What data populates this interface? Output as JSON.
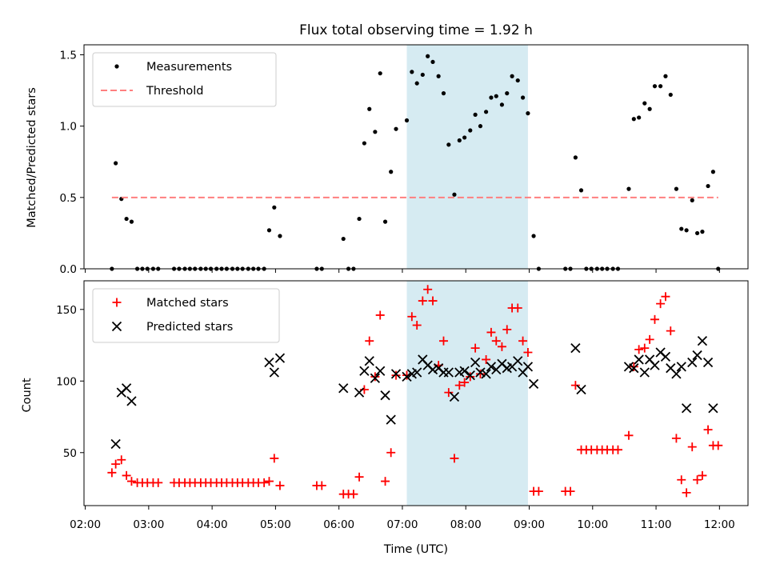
{
  "chart_data": [
    {
      "type": "scatter",
      "title": "Flux total observing time = 1.92 h",
      "xlabel": "",
      "ylabel": "Matched/Predicted stars",
      "x_unit": "hours UTC",
      "xlim": [
        1.98,
        12.45
      ],
      "ylim": [
        0,
        1.57
      ],
      "yticks": [
        0.0,
        0.5,
        1.0,
        1.5
      ],
      "ytick_labels": [
        "0.0",
        "0.5",
        "1.0",
        "1.5"
      ],
      "grid": false,
      "legend_position": "upper-left",
      "shaded_span": [
        7.07,
        8.98
      ],
      "shaded_color": "#add8e6",
      "series": [
        {
          "name": "Measurements",
          "marker": "dot",
          "color": "#000000",
          "points": [
            [
              2.42,
              0.0
            ],
            [
              2.48,
              0.74
            ],
            [
              2.57,
              0.49
            ],
            [
              2.65,
              0.35
            ],
            [
              2.73,
              0.33
            ],
            [
              2.82,
              0.0
            ],
            [
              2.9,
              0.0
            ],
            [
              2.98,
              0.0
            ],
            [
              3.07,
              0.0
            ],
            [
              3.15,
              0.0
            ],
            [
              3.4,
              0.0
            ],
            [
              3.48,
              0.0
            ],
            [
              3.57,
              0.0
            ],
            [
              3.65,
              0.0
            ],
            [
              3.73,
              0.0
            ],
            [
              3.82,
              0.0
            ],
            [
              3.9,
              0.0
            ],
            [
              3.98,
              0.0
            ],
            [
              4.07,
              0.0
            ],
            [
              4.15,
              0.0
            ],
            [
              4.23,
              0.0
            ],
            [
              4.32,
              0.0
            ],
            [
              4.4,
              0.0
            ],
            [
              4.48,
              0.0
            ],
            [
              4.57,
              0.0
            ],
            [
              4.65,
              0.0
            ],
            [
              4.73,
              0.0
            ],
            [
              4.82,
              0.0
            ],
            [
              4.9,
              0.27
            ],
            [
              4.98,
              0.43
            ],
            [
              5.07,
              0.23
            ],
            [
              5.65,
              0.0
            ],
            [
              5.73,
              0.0
            ],
            [
              6.07,
              0.21
            ],
            [
              6.15,
              0.0
            ],
            [
              6.23,
              0.0
            ],
            [
              6.32,
              0.35
            ],
            [
              6.4,
              0.88
            ],
            [
              6.48,
              1.12
            ],
            [
              6.57,
              0.96
            ],
            [
              6.65,
              1.37
            ],
            [
              6.73,
              0.33
            ],
            [
              6.82,
              0.68
            ],
            [
              6.9,
              0.98
            ],
            [
              7.07,
              1.04
            ],
            [
              7.15,
              1.38
            ],
            [
              7.23,
              1.3
            ],
            [
              7.32,
              1.36
            ],
            [
              7.4,
              1.49
            ],
            [
              7.48,
              1.45
            ],
            [
              7.57,
              1.35
            ],
            [
              7.65,
              1.23
            ],
            [
              7.73,
              0.87
            ],
            [
              7.82,
              0.52
            ],
            [
              7.9,
              0.9
            ],
            [
              7.98,
              0.92
            ],
            [
              8.07,
              0.97
            ],
            [
              8.15,
              1.08
            ],
            [
              8.23,
              1.0
            ],
            [
              8.32,
              1.1
            ],
            [
              8.4,
              1.2
            ],
            [
              8.48,
              1.21
            ],
            [
              8.57,
              1.15
            ],
            [
              8.65,
              1.23
            ],
            [
              8.73,
              1.35
            ],
            [
              8.82,
              1.32
            ],
            [
              8.9,
              1.2
            ],
            [
              8.98,
              1.09
            ],
            [
              9.07,
              0.23
            ],
            [
              9.15,
              0.0
            ],
            [
              9.57,
              0.0
            ],
            [
              9.65,
              0.0
            ],
            [
              9.73,
              0.78
            ],
            [
              9.82,
              0.55
            ],
            [
              9.9,
              0.0
            ],
            [
              9.98,
              0.0
            ],
            [
              10.07,
              0.0
            ],
            [
              10.15,
              0.0
            ],
            [
              10.23,
              0.0
            ],
            [
              10.32,
              0.0
            ],
            [
              10.4,
              0.0
            ],
            [
              10.57,
              0.56
            ],
            [
              10.65,
              1.05
            ],
            [
              10.73,
              1.06
            ],
            [
              10.82,
              1.16
            ],
            [
              10.9,
              1.12
            ],
            [
              10.98,
              1.28
            ],
            [
              11.07,
              1.28
            ],
            [
              11.15,
              1.35
            ],
            [
              11.23,
              1.22
            ],
            [
              11.32,
              0.56
            ],
            [
              11.4,
              0.28
            ],
            [
              11.48,
              0.27
            ],
            [
              11.57,
              0.48
            ],
            [
              11.65,
              0.25
            ],
            [
              11.73,
              0.26
            ],
            [
              11.82,
              0.58
            ],
            [
              11.9,
              0.68
            ],
            [
              11.98,
              0.0
            ]
          ]
        },
        {
          "name": "Threshold",
          "type": "line",
          "style": "dashed",
          "color": "#ff7f7f",
          "x": [
            2.42,
            11.98
          ],
          "y": [
            0.5,
            0.5
          ]
        }
      ]
    },
    {
      "type": "scatter",
      "title": "",
      "xlabel": "Time (UTC)",
      "ylabel": "Count",
      "x_unit": "hours UTC",
      "xlim": [
        1.98,
        12.45
      ],
      "ylim": [
        13,
        170
      ],
      "yticks": [
        50,
        100,
        150
      ],
      "ytick_labels": [
        "50",
        "100",
        "150"
      ],
      "xticks": [
        2,
        3,
        4,
        5,
        6,
        7,
        8,
        9,
        10,
        11,
        12
      ],
      "xtick_labels": [
        "02:00",
        "03:00",
        "04:00",
        "05:00",
        "06:00",
        "07:00",
        "08:00",
        "09:00",
        "10:00",
        "11:00",
        "12:00"
      ],
      "grid": false,
      "legend_position": "upper-left",
      "shaded_span": [
        7.07,
        8.98
      ],
      "shaded_color": "#add8e6",
      "series": [
        {
          "name": "Matched stars",
          "marker": "plus",
          "color": "#ff0000",
          "points": [
            [
              2.42,
              36
            ],
            [
              2.48,
              42
            ],
            [
              2.57,
              45
            ],
            [
              2.65,
              34
            ],
            [
              2.73,
              30
            ],
            [
              2.82,
              29
            ],
            [
              2.9,
              29
            ],
            [
              2.98,
              29
            ],
            [
              3.07,
              29
            ],
            [
              3.15,
              29
            ],
            [
              3.4,
              29
            ],
            [
              3.48,
              29
            ],
            [
              3.57,
              29
            ],
            [
              3.65,
              29
            ],
            [
              3.73,
              29
            ],
            [
              3.82,
              29
            ],
            [
              3.9,
              29
            ],
            [
              3.98,
              29
            ],
            [
              4.07,
              29
            ],
            [
              4.15,
              29
            ],
            [
              4.23,
              29
            ],
            [
              4.32,
              29
            ],
            [
              4.4,
              29
            ],
            [
              4.48,
              29
            ],
            [
              4.57,
              29
            ],
            [
              4.65,
              29
            ],
            [
              4.73,
              29
            ],
            [
              4.82,
              29
            ],
            [
              4.9,
              30
            ],
            [
              4.98,
              46
            ],
            [
              5.07,
              27
            ],
            [
              5.65,
              27
            ],
            [
              5.73,
              27
            ],
            [
              6.07,
              21
            ],
            [
              6.15,
              21
            ],
            [
              6.23,
              21
            ],
            [
              6.32,
              33
            ],
            [
              6.4,
              94
            ],
            [
              6.48,
              128
            ],
            [
              6.57,
              103
            ],
            [
              6.65,
              146
            ],
            [
              6.73,
              30
            ],
            [
              6.82,
              50
            ],
            [
              6.9,
              104
            ],
            [
              7.07,
              104
            ],
            [
              7.15,
              145
            ],
            [
              7.23,
              139
            ],
            [
              7.32,
              156
            ],
            [
              7.4,
              164
            ],
            [
              7.48,
              156
            ],
            [
              7.57,
              111
            ],
            [
              7.65,
              128
            ],
            [
              7.73,
              92
            ],
            [
              7.82,
              46
            ],
            [
              7.9,
              97
            ],
            [
              7.98,
              99
            ],
            [
              8.07,
              103
            ],
            [
              8.15,
              123
            ],
            [
              8.23,
              105
            ],
            [
              8.32,
              115
            ],
            [
              8.4,
              134
            ],
            [
              8.48,
              128
            ],
            [
              8.57,
              124
            ],
            [
              8.65,
              136
            ],
            [
              8.73,
              151
            ],
            [
              8.82,
              151
            ],
            [
              8.9,
              128
            ],
            [
              8.98,
              120
            ],
            [
              9.07,
              23
            ],
            [
              9.15,
              23
            ],
            [
              9.57,
              23
            ],
            [
              9.65,
              23
            ],
            [
              9.73,
              97
            ],
            [
              9.82,
              52
            ],
            [
              9.9,
              52
            ],
            [
              9.98,
              52
            ],
            [
              10.07,
              52
            ],
            [
              10.15,
              52
            ],
            [
              10.23,
              52
            ],
            [
              10.32,
              52
            ],
            [
              10.4,
              52
            ],
            [
              10.57,
              62
            ],
            [
              10.65,
              110
            ],
            [
              10.73,
              122
            ],
            [
              10.82,
              123
            ],
            [
              10.9,
              129
            ],
            [
              10.98,
              143
            ],
            [
              11.07,
              154
            ],
            [
              11.15,
              159
            ],
            [
              11.23,
              135
            ],
            [
              11.32,
              60
            ],
            [
              11.4,
              31
            ],
            [
              11.48,
              22
            ],
            [
              11.57,
              54
            ],
            [
              11.65,
              31
            ],
            [
              11.73,
              34
            ],
            [
              11.82,
              66
            ],
            [
              11.9,
              55
            ],
            [
              11.98,
              55
            ]
          ]
        },
        {
          "name": "Predicted stars",
          "marker": "x",
          "color": "#000000",
          "points": [
            [
              2.48,
              56
            ],
            [
              2.57,
              92
            ],
            [
              2.65,
              95
            ],
            [
              2.73,
              86
            ],
            [
              4.9,
              113
            ],
            [
              4.98,
              106
            ],
            [
              5.07,
              116
            ],
            [
              6.07,
              95
            ],
            [
              6.32,
              92
            ],
            [
              6.4,
              107
            ],
            [
              6.48,
              114
            ],
            [
              6.57,
              102
            ],
            [
              6.65,
              107
            ],
            [
              6.73,
              90
            ],
            [
              6.82,
              73
            ],
            [
              6.9,
              105
            ],
            [
              7.07,
              103
            ],
            [
              7.15,
              105
            ],
            [
              7.23,
              106
            ],
            [
              7.32,
              115
            ],
            [
              7.4,
              111
            ],
            [
              7.48,
              108
            ],
            [
              7.57,
              109
            ],
            [
              7.65,
              106
            ],
            [
              7.73,
              106
            ],
            [
              7.82,
              89
            ],
            [
              7.9,
              106
            ],
            [
              7.98,
              107
            ],
            [
              8.07,
              104
            ],
            [
              8.15,
              113
            ],
            [
              8.23,
              106
            ],
            [
              8.32,
              105
            ],
            [
              8.4,
              110
            ],
            [
              8.48,
              108
            ],
            [
              8.57,
              112
            ],
            [
              8.65,
              109
            ],
            [
              8.73,
              110
            ],
            [
              8.82,
              114
            ],
            [
              8.9,
              106
            ],
            [
              8.98,
              110
            ],
            [
              9.07,
              98
            ],
            [
              9.73,
              123
            ],
            [
              9.82,
              94
            ],
            [
              10.57,
              110
            ],
            [
              10.65,
              109
            ],
            [
              10.73,
              115
            ],
            [
              10.82,
              106
            ],
            [
              10.9,
              115
            ],
            [
              10.98,
              111
            ],
            [
              11.07,
              120
            ],
            [
              11.15,
              117
            ],
            [
              11.23,
              109
            ],
            [
              11.32,
              105
            ],
            [
              11.4,
              110
            ],
            [
              11.48,
              81
            ],
            [
              11.57,
              113
            ],
            [
              11.65,
              118
            ],
            [
              11.73,
              128
            ],
            [
              11.82,
              113
            ],
            [
              11.9,
              81
            ]
          ]
        }
      ]
    }
  ]
}
